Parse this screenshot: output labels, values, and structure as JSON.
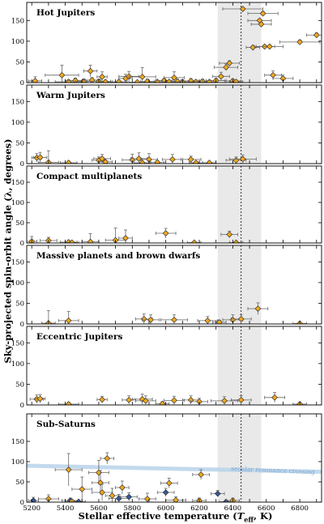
{
  "colors": {
    "planet_fill": "#f2a81d",
    "subsaturn_blue_fill": "#34579a",
    "marker_stroke": "#333333",
    "error_bar": "#666666",
    "shaded_band": "#e9e9e9",
    "secular_band": "#b9d2ea",
    "secular_text": "#7aa6d1"
  },
  "chart_data": {
    "type": "scatter",
    "xlabel": "Stellar effective temperature (T_eff, K)",
    "xlabel_parts": {
      "pre": "Stellar effective temperature (",
      "italic": "T",
      "sub": "eff",
      "post": ", K)"
    },
    "ylabel": "Sky-projected spin-orbit angle (λ, degrees)",
    "xlim": [
      5170,
      6930
    ],
    "ylim": [
      0,
      180
    ],
    "x_ticks": [
      5200,
      5300,
      5400,
      5500,
      5600,
      5700,
      5800,
      5900,
      6000,
      6100,
      6200,
      6300,
      6400,
      6500,
      6600,
      6700,
      6800,
      6900
    ],
    "y_ticks": [
      0,
      50,
      100,
      150
    ],
    "shaded_band_x": [
      6310,
      6570
    ],
    "kraft_break_line_x": 6450,
    "panels": [
      {
        "title": "Hot Jupiters",
        "points": [
          {
            "x": 5220,
            "y": 4,
            "xerr": 40,
            "yerr": 10
          },
          {
            "x": 5380,
            "y": 18,
            "xerr": 100,
            "yerr": 24
          },
          {
            "x": 5420,
            "y": 2,
            "xerr": 80,
            "yerr": 5
          },
          {
            "x": 5460,
            "y": 5,
            "xerr": 60,
            "yerr": 6
          },
          {
            "x": 5510,
            "y": 3,
            "xerr": 50,
            "yerr": 6
          },
          {
            "x": 5550,
            "y": 28,
            "xerr": 40,
            "yerr": 14
          },
          {
            "x": 5560,
            "y": 6,
            "xerr": 50,
            "yerr": 6
          },
          {
            "x": 5600,
            "y": 3,
            "xerr": 70,
            "yerr": 4
          },
          {
            "x": 5620,
            "y": 14,
            "xerr": 30,
            "yerr": 12
          },
          {
            "x": 5640,
            "y": 2,
            "xerr": 40,
            "yerr": 4
          },
          {
            "x": 5720,
            "y": 2,
            "xerr": 50,
            "yerr": 4
          },
          {
            "x": 5760,
            "y": 10,
            "xerr": 40,
            "yerr": 10
          },
          {
            "x": 5780,
            "y": 15,
            "xerr": 60,
            "yerr": 12
          },
          {
            "x": 5830,
            "y": 1,
            "xerr": 50,
            "yerr": 3
          },
          {
            "x": 5860,
            "y": 14,
            "xerr": 80,
            "yerr": 22
          },
          {
            "x": 5890,
            "y": 3,
            "xerr": 40,
            "yerr": 5
          },
          {
            "x": 5950,
            "y": 2,
            "xerr": 50,
            "yerr": 4
          },
          {
            "x": 5990,
            "y": 5,
            "xerr": 50,
            "yerr": 5
          },
          {
            "x": 6020,
            "y": 2,
            "xerr": 40,
            "yerr": 4
          },
          {
            "x": 6050,
            "y": 12,
            "xerr": 60,
            "yerr": 14
          },
          {
            "x": 6070,
            "y": 3,
            "xerr": 30,
            "yerr": 5
          },
          {
            "x": 6100,
            "y": 2,
            "xerr": 50,
            "yerr": 4
          },
          {
            "x": 6150,
            "y": 4,
            "xerr": 60,
            "yerr": 6
          },
          {
            "x": 6180,
            "y": 2,
            "xerr": 40,
            "yerr": 4
          },
          {
            "x": 6220,
            "y": 3,
            "xerr": 50,
            "yerr": 5
          },
          {
            "x": 6260,
            "y": 2,
            "xerr": 40,
            "yerr": 3
          },
          {
            "x": 6300,
            "y": 5,
            "xerr": 60,
            "yerr": 6
          },
          {
            "x": 6330,
            "y": 15,
            "xerr": 50,
            "yerr": 10
          },
          {
            "x": 6360,
            "y": 37,
            "xerr": 70,
            "yerr": 8
          },
          {
            "x": 6380,
            "y": 47,
            "xerr": 60,
            "yerr": 6
          },
          {
            "x": 6400,
            "y": 4,
            "xerr": 50,
            "yerr": 5
          },
          {
            "x": 6420,
            "y": 2,
            "xerr": 40,
            "yerr": 4
          },
          {
            "x": 6460,
            "y": 178,
            "xerr": 120,
            "yerr": 3
          },
          {
            "x": 6520,
            "y": 85,
            "xerr": 40,
            "yerr": 4
          },
          {
            "x": 6560,
            "y": 150,
            "xerr": 70,
            "yerr": 4
          },
          {
            "x": 6570,
            "y": 141,
            "xerr": 60,
            "yerr": 5
          },
          {
            "x": 6580,
            "y": 167,
            "xerr": 90,
            "yerr": 5
          },
          {
            "x": 6590,
            "y": 87,
            "xerr": 60,
            "yerr": 4
          },
          {
            "x": 6620,
            "y": 87,
            "xerr": 80,
            "yerr": 4
          },
          {
            "x": 6640,
            "y": 18,
            "xerr": 50,
            "yerr": 10
          },
          {
            "x": 6700,
            "y": 10,
            "xerr": 60,
            "yerr": 8
          },
          {
            "x": 6800,
            "y": 98,
            "xerr": 120,
            "yerr": 5
          },
          {
            "x": 6900,
            "y": 115,
            "xerr": 60,
            "yerr": 5
          }
        ]
      },
      {
        "title": "Warm Jupiters",
        "points": [
          {
            "x": 5230,
            "y": 14,
            "xerr": 30,
            "yerr": 10
          },
          {
            "x": 5250,
            "y": 15,
            "xerr": 40,
            "yerr": 12
          },
          {
            "x": 5300,
            "y": 3,
            "xerr": 60,
            "yerr": 28
          },
          {
            "x": 5420,
            "y": 2,
            "xerr": 50,
            "yerr": 4
          },
          {
            "x": 5600,
            "y": 8,
            "xerr": 40,
            "yerr": 8
          },
          {
            "x": 5620,
            "y": 12,
            "xerr": 50,
            "yerr": 10
          },
          {
            "x": 5640,
            "y": 4,
            "xerr": 40,
            "yerr": 5
          },
          {
            "x": 5800,
            "y": 9,
            "xerr": 60,
            "yerr": 14
          },
          {
            "x": 5840,
            "y": 12,
            "xerr": 50,
            "yerr": 14
          },
          {
            "x": 5860,
            "y": 2,
            "xerr": 50,
            "yerr": 4
          },
          {
            "x": 5900,
            "y": 10,
            "xerr": 50,
            "yerr": 14
          },
          {
            "x": 5950,
            "y": 3,
            "xerr": 40,
            "yerr": 4
          },
          {
            "x": 6040,
            "y": 10,
            "xerr": 60,
            "yerr": 12
          },
          {
            "x": 6150,
            "y": 10,
            "xerr": 60,
            "yerr": 8
          },
          {
            "x": 6180,
            "y": 2,
            "xerr": 40,
            "yerr": 4
          },
          {
            "x": 6260,
            "y": 2,
            "xerr": 40,
            "yerr": 4
          },
          {
            "x": 6420,
            "y": 8,
            "xerr": 60,
            "yerr": 8
          },
          {
            "x": 6460,
            "y": 11,
            "xerr": 80,
            "yerr": 10
          }
        ]
      },
      {
        "title": "Compact multiplanets",
        "points": [
          {
            "x": 5200,
            "y": 4,
            "xerr": 30,
            "yerr": 12
          },
          {
            "x": 5300,
            "y": 6,
            "xerr": 50,
            "yerr": 8
          },
          {
            "x": 5420,
            "y": 2,
            "xerr": 50,
            "yerr": 4
          },
          {
            "x": 5440,
            "y": 1,
            "xerr": 40,
            "yerr": 3
          },
          {
            "x": 5550,
            "y": 3,
            "xerr": 50,
            "yerr": 20
          },
          {
            "x": 5700,
            "y": 7,
            "xerr": 60,
            "yerr": 30
          },
          {
            "x": 5760,
            "y": 12,
            "xerr": 40,
            "yerr": 20
          },
          {
            "x": 6000,
            "y": 24,
            "xerr": 60,
            "yerr": 12
          },
          {
            "x": 6170,
            "y": 1,
            "xerr": 40,
            "yerr": 3
          },
          {
            "x": 6380,
            "y": 21,
            "xerr": 50,
            "yerr": 8
          },
          {
            "x": 6420,
            "y": 1,
            "xerr": 40,
            "yerr": 3
          }
        ]
      },
      {
        "title": "Massive planets and brown dwarfs",
        "points": [
          {
            "x": 5300,
            "y": 2,
            "xerr": 40,
            "yerr": 30
          },
          {
            "x": 5420,
            "y": 8,
            "xerr": 60,
            "yerr": 22
          },
          {
            "x": 5870,
            "y": 12,
            "xerr": 50,
            "yerr": 12
          },
          {
            "x": 5910,
            "y": 10,
            "xerr": 50,
            "yerr": 12
          },
          {
            "x": 6050,
            "y": 10,
            "xerr": 80,
            "yerr": 12
          },
          {
            "x": 6250,
            "y": 8,
            "xerr": 60,
            "yerr": 10
          },
          {
            "x": 6320,
            "y": 4,
            "xerr": 40,
            "yerr": 5
          },
          {
            "x": 6400,
            "y": 10,
            "xerr": 60,
            "yerr": 12
          },
          {
            "x": 6450,
            "y": 12,
            "xerr": 60,
            "yerr": 10
          },
          {
            "x": 6550,
            "y": 37,
            "xerr": 60,
            "yerr": 14
          },
          {
            "x": 6800,
            "y": 1,
            "xerr": 40,
            "yerr": 3
          }
        ]
      },
      {
        "title": "Eccentric Jupiters",
        "points": [
          {
            "x": 5230,
            "y": 14,
            "xerr": 40,
            "yerr": 10
          },
          {
            "x": 5250,
            "y": 15,
            "xerr": 30,
            "yerr": 10
          },
          {
            "x": 5420,
            "y": 2,
            "xerr": 60,
            "yerr": 4
          },
          {
            "x": 5620,
            "y": 13,
            "xerr": 30,
            "yerr": 8
          },
          {
            "x": 5780,
            "y": 12,
            "xerr": 40,
            "yerr": 10
          },
          {
            "x": 5860,
            "y": 14,
            "xerr": 60,
            "yerr": 12
          },
          {
            "x": 5880,
            "y": 10,
            "xerr": 60,
            "yerr": 12
          },
          {
            "x": 5980,
            "y": 3,
            "xerr": 40,
            "yerr": 5
          },
          {
            "x": 6050,
            "y": 11,
            "xerr": 60,
            "yerr": 10
          },
          {
            "x": 6150,
            "y": 12,
            "xerr": 50,
            "yerr": 10
          },
          {
            "x": 6200,
            "y": 8,
            "xerr": 50,
            "yerr": 8
          },
          {
            "x": 6350,
            "y": 10,
            "xerr": 80,
            "yerr": 10
          },
          {
            "x": 6450,
            "y": 12,
            "xerr": 60,
            "yerr": 10
          },
          {
            "x": 6650,
            "y": 18,
            "xerr": 60,
            "yerr": 12
          },
          {
            "x": 6800,
            "y": 2,
            "xerr": 40,
            "yerr": 4
          }
        ]
      },
      {
        "title": "Sub-Saturns",
        "secular_band": {
          "label": "secular resonance crossing",
          "x_start": 5170,
          "x_end": 6930,
          "y_start": 90,
          "y_end": 75,
          "half_width": 5
        },
        "points": [
          {
            "x": 5210,
            "y": 4,
            "xerr": 30,
            "yerr": 8,
            "color": "blue"
          },
          {
            "x": 5300,
            "y": 8,
            "xerr": 60,
            "yerr": 10
          },
          {
            "x": 5420,
            "y": 80,
            "xerr": 80,
            "yerr": 40
          },
          {
            "x": 5430,
            "y": 4,
            "xerr": 50,
            "yerr": 6,
            "color": "blue"
          },
          {
            "x": 5440,
            "y": 2,
            "xerr": 40,
            "yerr": 4
          },
          {
            "x": 5480,
            "y": 1,
            "xerr": 40,
            "yerr": 3,
            "color": "blue"
          },
          {
            "x": 5500,
            "y": 32,
            "xerr": 60,
            "yerr": 30
          },
          {
            "x": 5600,
            "y": 73,
            "xerr": 60,
            "yerr": 30
          },
          {
            "x": 5610,
            "y": 48,
            "xerr": 50,
            "yerr": 30
          },
          {
            "x": 5620,
            "y": 24,
            "xerr": 60,
            "yerr": 20
          },
          {
            "x": 5650,
            "y": 108,
            "xerr": 40,
            "yerr": 14
          },
          {
            "x": 5680,
            "y": 16,
            "xerr": 40,
            "yerr": 18
          },
          {
            "x": 5720,
            "y": 9,
            "xerr": 60,
            "yerr": 10,
            "color": "blue"
          },
          {
            "x": 5740,
            "y": 36,
            "xerr": 40,
            "yerr": 16
          },
          {
            "x": 5780,
            "y": 13,
            "xerr": 50,
            "yerr": 10,
            "color": "blue"
          },
          {
            "x": 5890,
            "y": 8,
            "xerr": 50,
            "yerr": 14
          },
          {
            "x": 6000,
            "y": 24,
            "xerr": 50,
            "yerr": 10,
            "color": "blue"
          },
          {
            "x": 6020,
            "y": 47,
            "xerr": 50,
            "yerr": 12
          },
          {
            "x": 6060,
            "y": 5,
            "xerr": 60,
            "yerr": 8
          },
          {
            "x": 6200,
            "y": 4,
            "xerr": 40,
            "yerr": 6
          },
          {
            "x": 6210,
            "y": 68,
            "xerr": 50,
            "yerr": 12
          },
          {
            "x": 6310,
            "y": 21,
            "xerr": 40,
            "yerr": 8,
            "color": "blue"
          },
          {
            "x": 6360,
            "y": 1,
            "xerr": 40,
            "yerr": 4,
            "color": "blue"
          },
          {
            "x": 6400,
            "y": 4,
            "xerr": 40,
            "yerr": 6
          }
        ]
      }
    ]
  }
}
